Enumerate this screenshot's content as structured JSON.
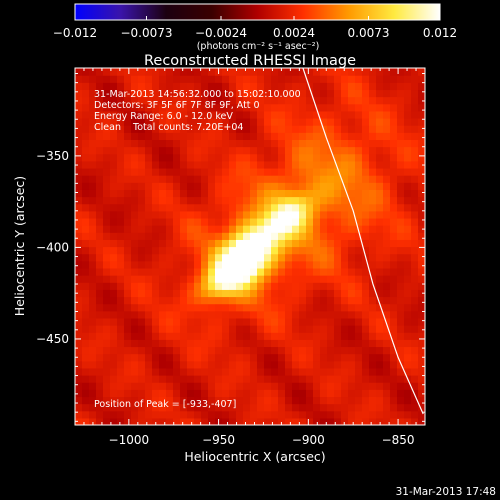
{
  "chart_data": {
    "type": "heatmap",
    "title": "Reconstructed RHESSI Image",
    "xlabel": "Heliocentric X (arcsec)",
    "ylabel": "Heliocentric Y (arcsec)",
    "xlim": [
      -1030,
      -835
    ],
    "ylim": [
      -497,
      -302
    ],
    "x_ticks": [
      {
        "value": -1000,
        "label": "−1000"
      },
      {
        "value": -950,
        "label": "−950"
      },
      {
        "value": -900,
        "label": "−900"
      },
      {
        "value": -850,
        "label": "−850"
      }
    ],
    "y_ticks": [
      {
        "value": -350,
        "label": "−350"
      },
      {
        "value": -400,
        "label": "−400"
      },
      {
        "value": -450,
        "label": "−450"
      }
    ],
    "colorbar": {
      "range": [
        -0.012,
        0.012
      ],
      "ticks": [
        {
          "value": -0.012,
          "label": "−0.012"
        },
        {
          "value": -0.0073,
          "label": "−0.0073"
        },
        {
          "value": -0.0024,
          "label": "−0.0024"
        },
        {
          "value": 0.0024,
          "label": "0.0024"
        },
        {
          "value": 0.0073,
          "label": "0.0073"
        },
        {
          "value": 0.012,
          "label": "0.012"
        }
      ],
      "units_label": "(photons cm⁻² s⁻¹ asec⁻²)"
    },
    "sources": [
      {
        "x": -935,
        "y": -405,
        "sx": 11,
        "sy": 8,
        "rotation_deg": 45,
        "peak": 1.0
      },
      {
        "x": -913,
        "y": -384,
        "sx": 12,
        "sy": 6,
        "rotation_deg": 40,
        "peak": 0.62
      },
      {
        "x": -948,
        "y": -418,
        "sx": 10,
        "sy": 6,
        "rotation_deg": 35,
        "peak": 0.55
      },
      {
        "x": -925,
        "y": -395,
        "sx": 34,
        "sy": 22,
        "rotation_deg": 45,
        "peak": 0.32
      },
      {
        "x": -880,
        "y": -360,
        "sx": 25,
        "sy": 30,
        "rotation_deg": 10,
        "peak": 0.2
      }
    ],
    "peak_position": [
      -933,
      -407
    ],
    "limb_curve": [
      [
        -903,
        -302
      ],
      [
        -890,
        -340
      ],
      [
        -875,
        -380
      ],
      [
        -864,
        -420
      ],
      [
        -850,
        -460
      ],
      [
        -836,
        -491
      ]
    ],
    "info_lines": [
      "31-Mar-2013 14:56:32.000 to 15:02:10.000",
      "Detectors: 3F 5F 6F 7F 8F 9F, Att 0",
      "Energy Range: 6.0 - 12.0 keV",
      "Clean    Total counts: 7.20E+04"
    ],
    "peak_label": "Position of Peak = [-933,-407]",
    "timestamp": "31-Mar-2013 17:48",
    "colors": {
      "background": "#000000",
      "limb": "#ffffff",
      "colormap": [
        "#0000ff",
        "#3a14aa",
        "#1c0010",
        "#3a0000",
        "#b00000",
        "#ff3000",
        "#ff9a00",
        "#ffea40",
        "#ffffff"
      ]
    }
  }
}
